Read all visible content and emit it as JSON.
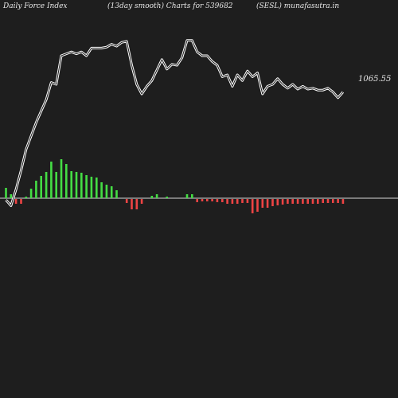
{
  "header": {
    "left": "Daily Force  Index",
    "center": "(13day smooth) Charts for 539682",
    "right": "(SESL) munafasutra.in"
  },
  "chart_data": {
    "type": "line",
    "colors": {
      "background": "#1e1e1e",
      "price_line": "#ffffff",
      "zero_line": "#d8d8d8",
      "positive_bar": "#44dd44",
      "negative_bar": "#ee4444"
    },
    "price_series": {
      "last_label": "1065.55",
      "values": [
        -1,
        -7,
        10,
        30,
        52,
        66,
        80,
        92,
        104,
        122,
        120,
        150,
        152,
        154,
        152,
        154,
        150,
        158,
        158,
        158,
        159,
        162,
        160,
        164,
        165,
        140,
        120,
        110,
        118,
        124,
        135,
        146,
        136,
        141,
        140,
        148,
        166,
        166,
        154,
        150,
        150,
        144,
        140,
        128,
        130,
        118,
        130,
        124,
        134,
        128,
        132,
        110,
        118,
        120,
        126,
        120,
        116,
        120,
        115,
        118,
        115,
        116,
        114,
        114,
        116,
        112,
        106,
        112
      ]
    },
    "force_index": {
      "zero_level": 0,
      "values": [
        1.3,
        0.5,
        -0.6,
        -0.6,
        0.2,
        1.2,
        2.2,
        2.8,
        3.3,
        4.6,
        3.3,
        4.9,
        4.3,
        3.4,
        3.3,
        3.2,
        2.9,
        2.7,
        2.6,
        2.0,
        1.7,
        1.5,
        1.0,
        0.0,
        -0.5,
        -1.3,
        -1.3,
        -0.6,
        0.0,
        0.3,
        0.5,
        0.0,
        0.2,
        0.0,
        0.0,
        0.0,
        0.5,
        0.5,
        -0.4,
        -0.3,
        -0.3,
        -0.3,
        -0.4,
        -0.4,
        -0.6,
        -0.6,
        -0.6,
        -0.5,
        -0.5,
        -1.8,
        -1.6,
        -1.1,
        -1.1,
        -0.9,
        -0.8,
        -0.7,
        -0.6,
        -0.6,
        -0.6,
        -0.6,
        -0.6,
        -0.6,
        -0.6,
        -0.5,
        -0.5,
        -0.5,
        -0.5,
        -0.6
      ]
    }
  }
}
